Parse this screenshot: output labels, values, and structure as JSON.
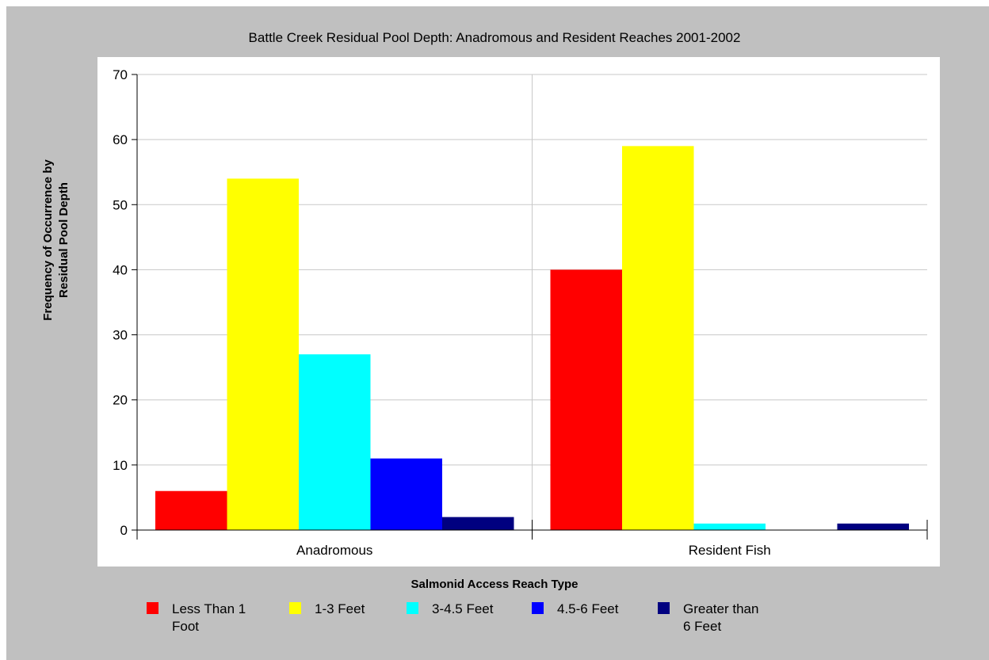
{
  "chart_data": {
    "type": "bar",
    "title": "Battle Creek Residual Pool Depth: Anadromous and Resident Reaches 2001-2002",
    "xlabel": "Salmonid Access Reach Type",
    "ylabel_lines": [
      "Frequency of Occurrence by",
      "Residual Pool Depth"
    ],
    "ylim": [
      0,
      70
    ],
    "yticks": [
      "0",
      "10",
      "20",
      "30",
      "40",
      "50",
      "60",
      "70"
    ],
    "grid": true,
    "legend_position": "bottom",
    "categories": [
      "Anadromous",
      "Resident Fish"
    ],
    "series": [
      {
        "name_lines": [
          "Less Than 1",
          "Foot"
        ],
        "color": "#ff0000",
        "values": [
          6,
          40
        ]
      },
      {
        "name_lines": [
          "1-3 Feet"
        ],
        "color": "#ffff00",
        "values": [
          54,
          59
        ]
      },
      {
        "name_lines": [
          "3-4.5 Feet"
        ],
        "color": "#00ffff",
        "values": [
          27,
          1
        ]
      },
      {
        "name_lines": [
          "4.5-6 Feet"
        ],
        "color": "#0000ff",
        "values": [
          11,
          0
        ]
      },
      {
        "name_lines": [
          "Greater than",
          "6 Feet"
        ],
        "color": "#000080",
        "values": [
          2,
          1
        ]
      }
    ]
  }
}
